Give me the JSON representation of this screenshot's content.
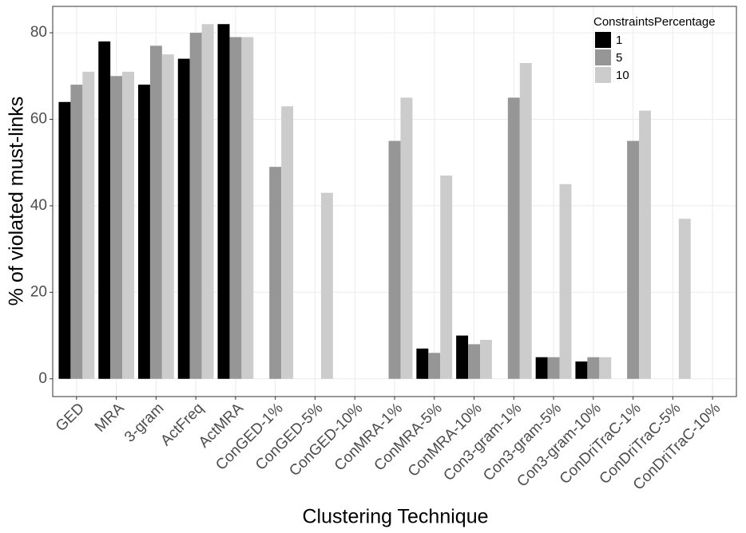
{
  "chart_data": {
    "type": "bar",
    "x_label": "Clustering Technique",
    "y_label": "% of violated must-links",
    "legend_title": "ConstraintsPercentage",
    "legend_position": "top-right",
    "grid": true,
    "categories": [
      "GED",
      "MRA",
      "3-gram",
      "ActFreq",
      "ActMRA",
      "ConGED-1%",
      "ConGED-5%",
      "ConGED-10%",
      "ConMRA-1%",
      "ConMRA-5%",
      "ConMRA-10%",
      "Con3-gram-1%",
      "Con3-gram-5%",
      "Con3-gram-10%",
      "ConDriTraC-1%",
      "ConDriTraC-5%",
      "ConDriTraC-10%"
    ],
    "series": [
      {
        "name": "1",
        "color": "#000000",
        "values": [
          64,
          78,
          68,
          74,
          82,
          0,
          0,
          0,
          0,
          7,
          10,
          0,
          5,
          4,
          0,
          0,
          0
        ]
      },
      {
        "name": "5",
        "color": "#969696",
        "values": [
          68,
          70,
          77,
          80,
          79,
          49,
          0,
          0,
          55,
          6,
          8,
          65,
          5,
          5,
          55,
          0,
          0
        ]
      },
      {
        "name": "10",
        "color": "#cccccc",
        "values": [
          71,
          71,
          75,
          82,
          79,
          63,
          43,
          0,
          65,
          47,
          9,
          73,
          45,
          5,
          62,
          37,
          0
        ]
      }
    ],
    "ylim": [
      -4.1,
      86.1
    ],
    "yticks": [
      0,
      20,
      40,
      60,
      80
    ]
  }
}
